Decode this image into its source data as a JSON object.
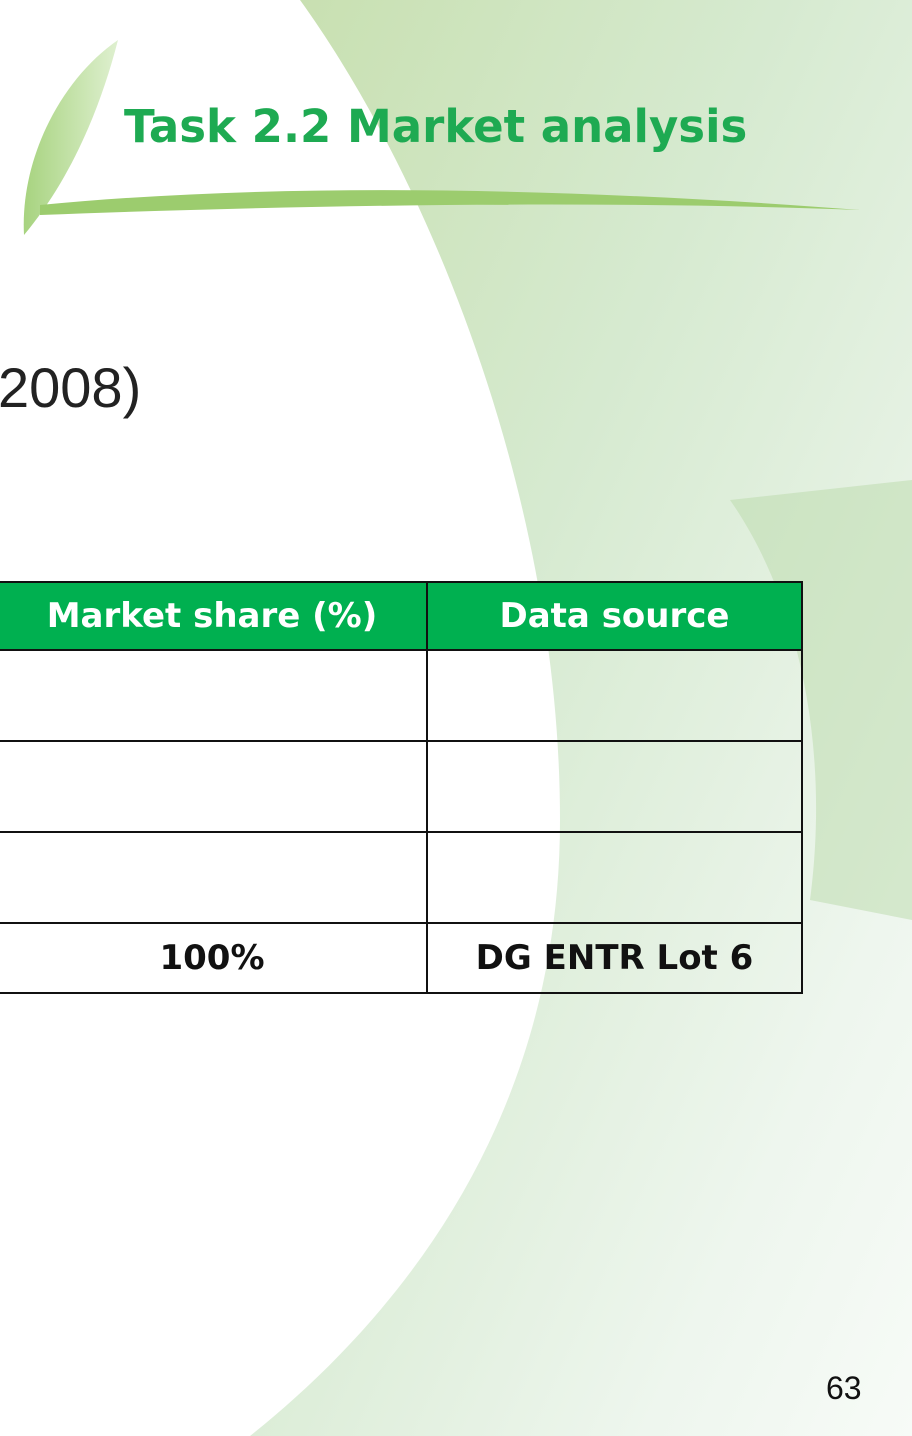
{
  "header": {
    "title": "Task 2.2 Market analysis"
  },
  "heading": "2008)",
  "table": {
    "header": [
      "Market share (%)",
      "Data source"
    ],
    "total_row": [
      "100%",
      "DG ENTR Lot 6"
    ]
  },
  "footer": {
    "page_number": "63"
  }
}
